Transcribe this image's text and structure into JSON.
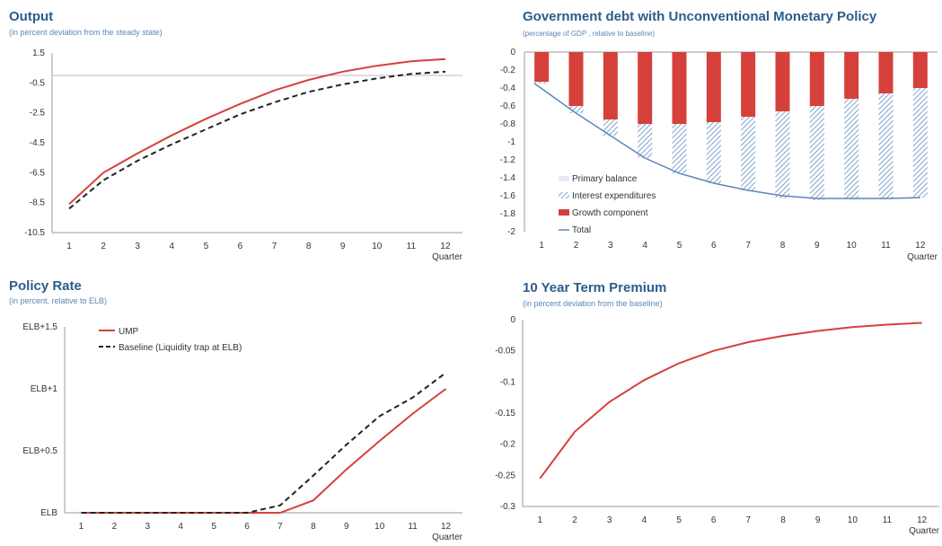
{
  "chart_data": [
    {
      "type": "line",
      "title": "Output",
      "subtitle": "(in percent deviation from the steady state)",
      "xlabel": "Quarter",
      "categories": [
        "1",
        "2",
        "3",
        "4",
        "5",
        "6",
        "7",
        "8",
        "9",
        "10",
        "11",
        "12"
      ],
      "yticks": [
        "1.5",
        "-0.5",
        "-2.5",
        "-4.5",
        "-6.5",
        "-8.5",
        "-10.5"
      ],
      "ylim": [
        -10.5,
        1.5
      ],
      "series": [
        {
          "style": "solid",
          "color": "#d6403b",
          "values": [
            -8.6,
            -6.5,
            -5.2,
            -4.0,
            -2.9,
            -1.9,
            -1.0,
            -0.3,
            0.25,
            0.65,
            0.95,
            1.1
          ]
        },
        {
          "style": "dashed",
          "color": "#222222",
          "values": [
            -8.9,
            -7.0,
            -5.7,
            -4.6,
            -3.6,
            -2.6,
            -1.8,
            -1.1,
            -0.6,
            -0.2,
            0.1,
            0.25
          ]
        }
      ]
    },
    {
      "type": "bar",
      "title": "Government debt with Unconventional Monetary Policy",
      "subtitle": "(percentage of GDP , relative to baseline)",
      "xlabel": "Quarter",
      "categories": [
        "1",
        "2",
        "3",
        "4",
        "5",
        "6",
        "7",
        "8",
        "9",
        "10",
        "11",
        "12"
      ],
      "yticks": [
        "0",
        "-0.2",
        "-0.4",
        "-0.6",
        "-0.8",
        "-1",
        "-1.2",
        "-1.4",
        "-1.6",
        "-1.8",
        "-2"
      ],
      "ylim": [
        -2,
        0
      ],
      "legend": [
        "Primary balance",
        "Interest expenditures",
        "Growth component",
        "Total"
      ],
      "series": [
        {
          "name": "Primary balance",
          "values": [
            0,
            0,
            0,
            0,
            0,
            0,
            0,
            0,
            0,
            0,
            0,
            0
          ]
        },
        {
          "name": "Interest expenditures",
          "values": [
            -0.02,
            -0.08,
            -0.18,
            -0.38,
            -0.55,
            -0.68,
            -0.82,
            -0.97,
            -1.05,
            -1.12,
            -1.18,
            -1.22
          ]
        },
        {
          "name": "Growth component",
          "values": [
            -0.33,
            -0.6,
            -0.75,
            -0.8,
            -0.8,
            -0.78,
            -0.72,
            -0.66,
            -0.6,
            -0.52,
            -0.46,
            -0.4
          ]
        },
        {
          "name": "Total",
          "values": [
            -0.35,
            -0.68,
            -0.93,
            -1.18,
            -1.35,
            -1.46,
            -1.54,
            -1.6,
            -1.63,
            -1.63,
            -1.63,
            -1.62
          ]
        }
      ]
    },
    {
      "type": "line",
      "title": "Policy Rate",
      "subtitle": "(in percent, relative to ELB)",
      "xlabel": "Quarter",
      "categories": [
        "1",
        "2",
        "3",
        "4",
        "5",
        "6",
        "7",
        "8",
        "9",
        "10",
        "11",
        "12"
      ],
      "yticks": [
        "ELB+1.5",
        "ELB+1",
        "ELB+0.5",
        "ELB"
      ],
      "ylim": [
        0,
        1.5
      ],
      "legend": [
        "UMP",
        "Baseline (Liquidity trap at ELB)"
      ],
      "series": [
        {
          "name": "UMP",
          "style": "solid",
          "color": "#d6403b",
          "values": [
            0,
            0,
            0,
            0,
            0,
            0,
            0,
            0.1,
            0.35,
            0.58,
            0.8,
            1.0
          ]
        },
        {
          "name": "Baseline (Liquidity trap at ELB)",
          "style": "dashed",
          "color": "#222222",
          "values": [
            0,
            0,
            0,
            0,
            0,
            0,
            0.06,
            0.3,
            0.55,
            0.78,
            0.93,
            1.13
          ]
        }
      ]
    },
    {
      "type": "line",
      "title": "10 Year Term Premium",
      "subtitle": "(in percent deviation from the baseline)",
      "xlabel": "Quarter",
      "categories": [
        "1",
        "2",
        "3",
        "4",
        "5",
        "6",
        "7",
        "8",
        "9",
        "10",
        "11",
        "12"
      ],
      "yticks": [
        "0",
        "-0.05",
        "-0.1",
        "-0.15",
        "-0.2",
        "-0.25",
        "-0.3"
      ],
      "ylim": [
        -0.3,
        0
      ],
      "series": [
        {
          "style": "solid",
          "color": "#d6403b",
          "values": [
            -0.255,
            -0.18,
            -0.132,
            -0.097,
            -0.07,
            -0.05,
            -0.036,
            -0.026,
            -0.018,
            -0.012,
            -0.008,
            -0.005
          ]
        }
      ]
    }
  ],
  "colors": {
    "title": "#2b5d8c",
    "subtitle": "#5b86b3",
    "red": "#d6403b",
    "blue": "#5d86b8",
    "hatch": "#7fa3cc"
  }
}
